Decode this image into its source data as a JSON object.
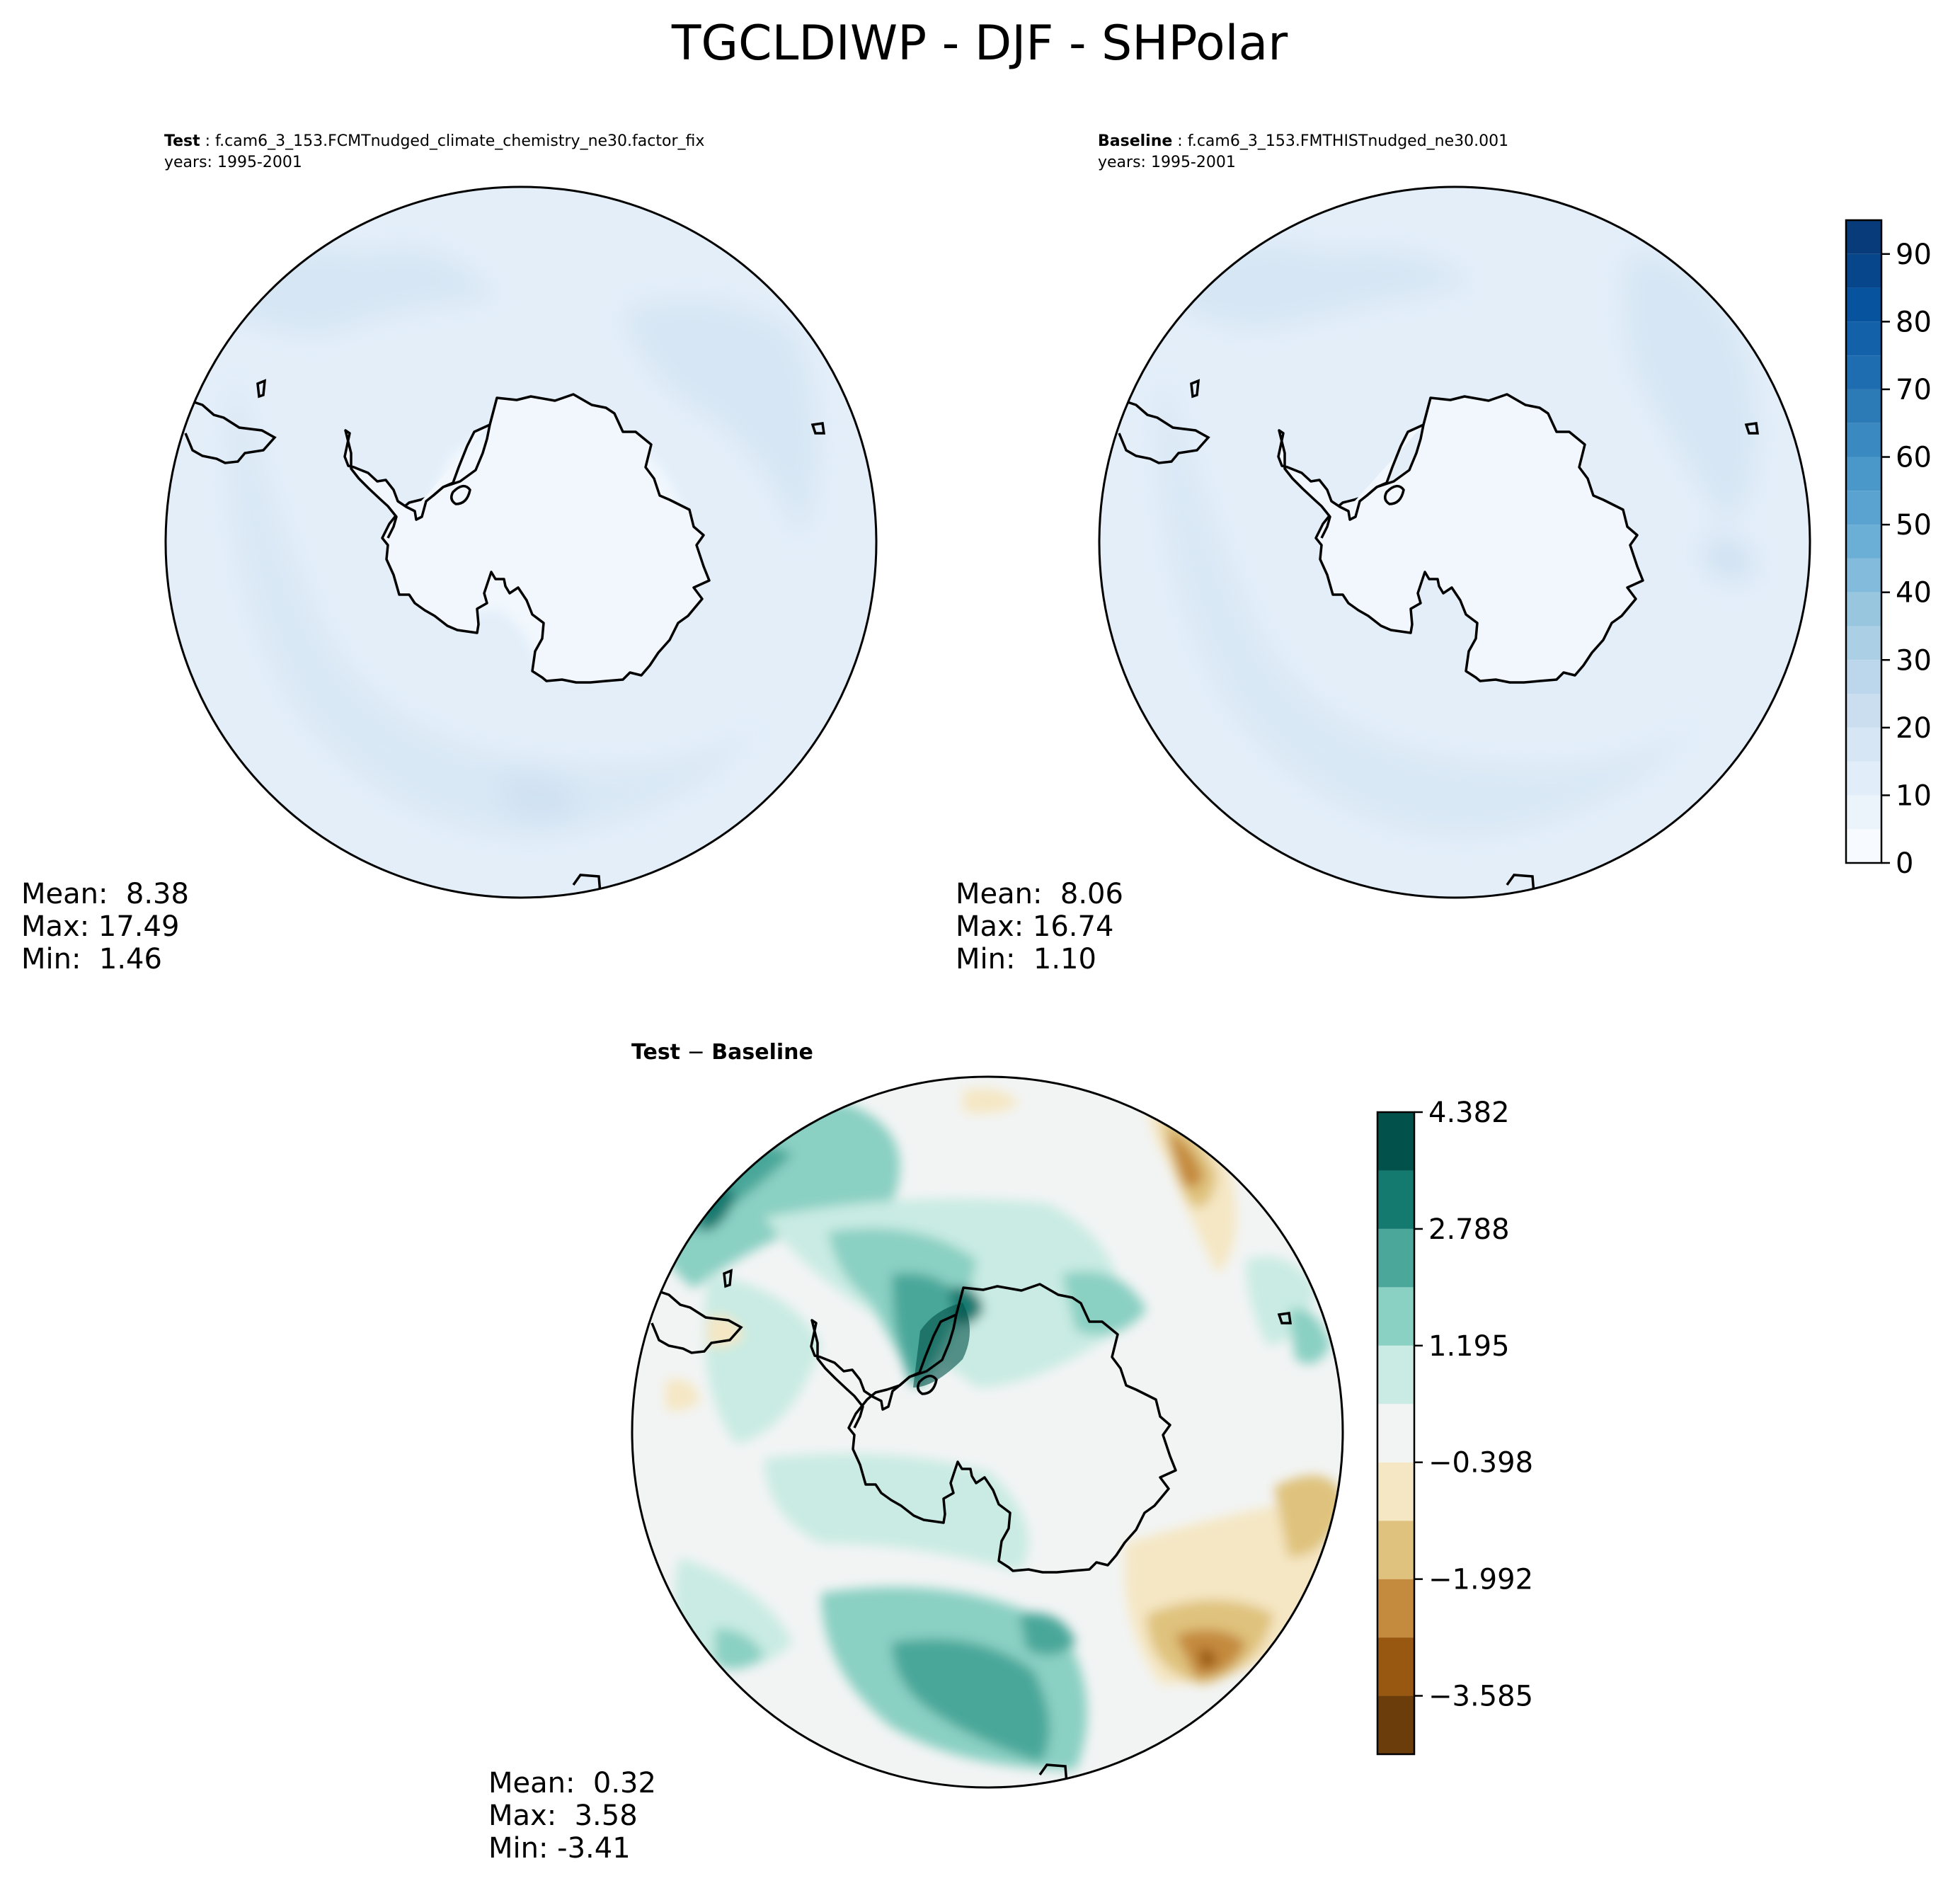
{
  "title": "TGCLDIWP - DJF - SHPolar",
  "panels": {
    "test": {
      "label": "Test",
      "case": "f.cam6_3_153.FCMTnudged_climate_chemistry_ne30.factor_fix",
      "years": "years: 1995-2001",
      "stats": [
        "Mean:  8.38",
        "Max: 17.49",
        "Min:  1.46"
      ]
    },
    "baseline": {
      "label": "Baseline",
      "case": "f.cam6_3_153.FMTHISTnudged_ne30.001",
      "years": "years: 1995-2001",
      "stats": [
        "Mean:  8.06",
        "Max: 16.74",
        "Min:  1.10"
      ]
    },
    "diff": {
      "title_a": "Test",
      "title_sep": " − ",
      "title_b": "Baseline",
      "stats": [
        "Mean:  0.32",
        "Max:  3.58",
        "Min: -3.41"
      ]
    }
  },
  "chart_data": [
    {
      "type": "heatmap",
      "panel": "test",
      "projection": "south-polar-stereographic",
      "region": "Antarctica / Southern Ocean",
      "value_range": [
        1.46,
        17.49
      ],
      "mean": 8.38,
      "colormap": "Blues",
      "colorbar_shared_with": "baseline"
    },
    {
      "type": "heatmap",
      "panel": "baseline",
      "projection": "south-polar-stereographic",
      "region": "Antarctica / Southern Ocean",
      "value_range": [
        1.1,
        16.74
      ],
      "mean": 8.06,
      "colormap": "Blues",
      "colorbar": {
        "levels": [
          0,
          5,
          10,
          15,
          20,
          25,
          30,
          35,
          40,
          45,
          50,
          55,
          60,
          65,
          70,
          75,
          80,
          85,
          90,
          95
        ],
        "tick_values": [
          0,
          10,
          20,
          30,
          40,
          50,
          60,
          70,
          80,
          90
        ],
        "tick_labels": [
          "0",
          "10",
          "20",
          "30",
          "40",
          "50",
          "60",
          "70",
          "80",
          "90"
        ],
        "colors": [
          "#f7fbff",
          "#ebf3fb",
          "#e1edf8",
          "#d6e6f4",
          "#cadef0",
          "#bcd7eb",
          "#abd0e6",
          "#98c6df",
          "#82bbdb",
          "#6baed6",
          "#5aa2cf",
          "#4a97c9",
          "#3a89c0",
          "#2c7bb6",
          "#1f6db1",
          "#1361a9",
          "#08539d",
          "#08468b",
          "#083b79"
        ]
      }
    },
    {
      "type": "heatmap",
      "panel": "diff",
      "projection": "south-polar-stereographic",
      "region": "Antarctica / Southern Ocean",
      "value_range": [
        -3.41,
        3.58
      ],
      "mean": 0.32,
      "colormap": "BrBG",
      "colorbar": {
        "range": [
          -4.382,
          4.382
        ],
        "tick_values": [
          4.382,
          2.788,
          1.195,
          -0.398,
          -1.992,
          -3.585
        ],
        "tick_labels": [
          "4.382",
          "2.788",
          "1.195",
          "−0.398",
          "−1.992",
          "−3.585"
        ],
        "colors": [
          "#6a3d0b",
          "#995811",
          "#c48a3e",
          "#dfc27d",
          "#f5e7c4",
          "#f2f4f4",
          "#c9ebe3",
          "#8ad0c3",
          "#4aa79a",
          "#14796f",
          "#02514a"
        ]
      }
    }
  ]
}
